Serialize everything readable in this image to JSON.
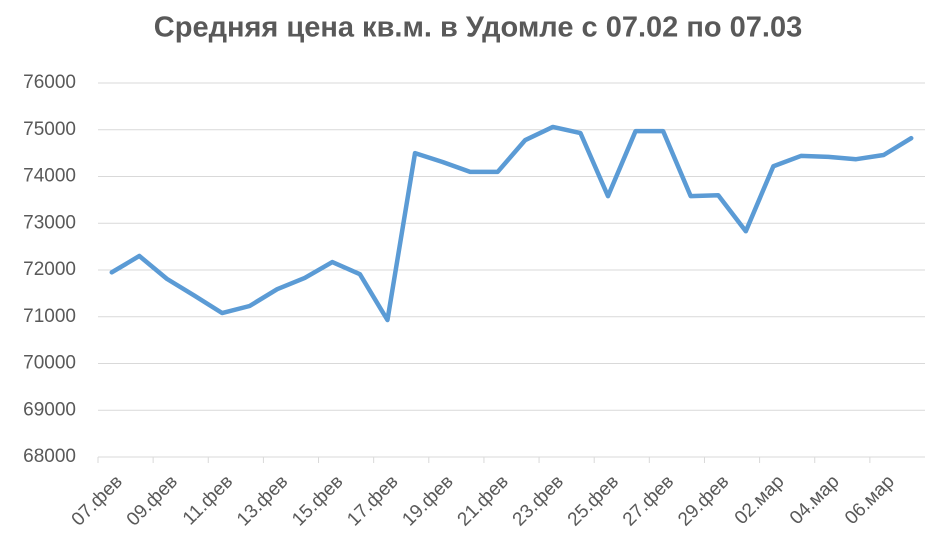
{
  "chart_data": {
    "type": "line",
    "title": "Средняя цена кв.м. в Удомле с 07.02 по 07.03",
    "categories": [
      "07.фев",
      null,
      "09.фев",
      null,
      "11.фев",
      null,
      "13.фев",
      null,
      "15.фев",
      null,
      "17.фев",
      null,
      "19.фев",
      null,
      "21.фев",
      null,
      "23.фев",
      null,
      "25.фев",
      null,
      "27.фев",
      null,
      "29.фев",
      null,
      "02.мар",
      null,
      "04.мар",
      null,
      "06.мар",
      null
    ],
    "series": [
      {
        "name": "Средняя цена",
        "color": "#5b9bd5",
        "values": [
          71950,
          72300,
          71810,
          71450,
          71080,
          71230,
          71590,
          71830,
          72170,
          71910,
          70930,
          74500,
          74310,
          74100,
          74100,
          74780,
          75060,
          74930,
          73580,
          74970,
          74970,
          73580,
          73600,
          72830,
          74220,
          74440,
          74420,
          74370,
          74460,
          74820
        ]
      }
    ],
    "ylim": [
      68000,
      76000
    ],
    "yticks": [
      68000,
      69000,
      70000,
      71000,
      72000,
      73000,
      74000,
      75000,
      76000
    ],
    "grid": true
  }
}
